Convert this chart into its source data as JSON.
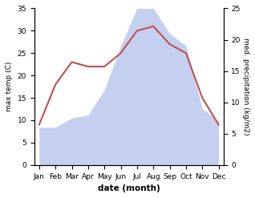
{
  "months": [
    "Jan",
    "Feb",
    "Mar",
    "Apr",
    "May",
    "Jun",
    "Jul",
    "Aug",
    "Sep",
    "Oct",
    "Nov",
    "Dec"
  ],
  "temperature": [
    9,
    18,
    23,
    22,
    22,
    25,
    30,
    31,
    27,
    25,
    15,
    9
  ],
  "precipitation": [
    6,
    6,
    7.5,
    8,
    12,
    19,
    25,
    25,
    21,
    19,
    9,
    7
  ],
  "temp_color": "#c0504d",
  "precip_fill_color": "#c5d0f0",
  "temp_ylim": [
    0,
    35
  ],
  "precip_ylim": [
    0,
    25
  ],
  "ylabel_left": "max temp (C)",
  "ylabel_right": "med. precipitation (kg/m2)",
  "xlabel": "date (month)",
  "left_yticks": [
    0,
    5,
    10,
    15,
    20,
    25,
    30,
    35
  ],
  "right_yticks": [
    0,
    5,
    10,
    15,
    20,
    25
  ],
  "background_color": "#ffffff"
}
